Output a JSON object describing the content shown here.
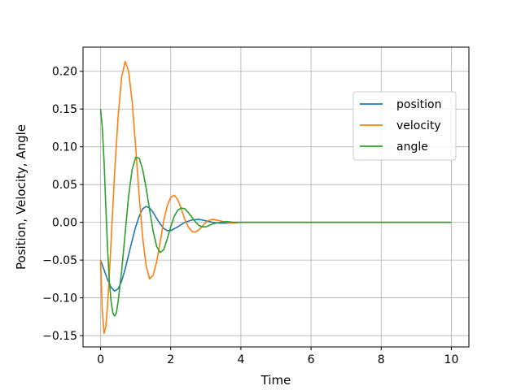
{
  "chart_data": {
    "type": "line",
    "title": "",
    "xlabel": "Time",
    "ylabel": "Position, Velocity, Angle",
    "xlim": [
      -0.5,
      10.5
    ],
    "ylim": [
      -0.165,
      0.232
    ],
    "grid": true,
    "legend_position": "upper right",
    "x_ticks": [
      0,
      2,
      4,
      6,
      8,
      10
    ],
    "x_tick_labels": [
      "0",
      "2",
      "4",
      "6",
      "8",
      "10"
    ],
    "y_ticks": [
      -0.15,
      -0.1,
      -0.05,
      0.0,
      0.05,
      0.1,
      0.15,
      0.2
    ],
    "y_tick_labels": [
      "−0.15",
      "−0.10",
      "−0.05",
      "0.00",
      "0.05",
      "0.10",
      "0.15",
      "0.20"
    ],
    "series": [
      {
        "name": "position",
        "color": "#1f77b4",
        "x": [
          0,
          0.1,
          0.2,
          0.3,
          0.4,
          0.5,
          0.6,
          0.7,
          0.8,
          0.9,
          1.0,
          1.1,
          1.2,
          1.3,
          1.4,
          1.5,
          1.6,
          1.7,
          1.8,
          1.9,
          2.0,
          2.2,
          2.4,
          2.6,
          2.8,
          3.0,
          3.2,
          3.4,
          3.6,
          3.8,
          4.0,
          5.0,
          6.0,
          7.0,
          8.0,
          9.0,
          10.0
        ],
        "y": [
          -0.05,
          -0.063,
          -0.076,
          -0.086,
          -0.091,
          -0.088,
          -0.078,
          -0.062,
          -0.043,
          -0.024,
          -0.006,
          0.008,
          0.018,
          0.021,
          0.019,
          0.013,
          0.005,
          -0.002,
          -0.008,
          -0.011,
          -0.011,
          -0.006,
          0.0,
          0.003,
          0.004,
          0.002,
          0.0,
          -0.001,
          -0.001,
          0.0,
          0.0,
          0.0,
          0.0,
          0.0,
          0.0,
          0.0,
          0.0
        ]
      },
      {
        "name": "velocity",
        "color": "#ff7f0e",
        "x": [
          0,
          0.05,
          0.1,
          0.15,
          0.2,
          0.25,
          0.3,
          0.4,
          0.5,
          0.6,
          0.7,
          0.8,
          0.9,
          1.0,
          1.1,
          1.2,
          1.3,
          1.4,
          1.5,
          1.6,
          1.7,
          1.8,
          1.9,
          2.0,
          2.1,
          2.2,
          2.3,
          2.4,
          2.5,
          2.6,
          2.7,
          2.8,
          2.9,
          3.0,
          3.1,
          3.2,
          3.3,
          3.4,
          3.6,
          3.8,
          4.0,
          5.0,
          6.0,
          7.0,
          8.0,
          9.0,
          10.0
        ],
        "y": [
          -0.05,
          -0.118,
          -0.147,
          -0.138,
          -0.11,
          -0.07,
          -0.025,
          0.065,
          0.14,
          0.192,
          0.213,
          0.2,
          0.16,
          0.1,
          0.035,
          -0.02,
          -0.058,
          -0.075,
          -0.07,
          -0.052,
          -0.026,
          0.002,
          0.022,
          0.033,
          0.036,
          0.03,
          0.018,
          0.004,
          -0.006,
          -0.012,
          -0.013,
          -0.01,
          -0.005,
          0.0,
          0.003,
          0.004,
          0.003,
          0.002,
          0.0,
          -0.001,
          0.0,
          0.0,
          0.0,
          0.0,
          0.0,
          0.0,
          0.0
        ]
      },
      {
        "name": "angle",
        "color": "#2ca02c",
        "x": [
          0,
          0.05,
          0.1,
          0.15,
          0.2,
          0.25,
          0.3,
          0.35,
          0.4,
          0.45,
          0.5,
          0.6,
          0.7,
          0.8,
          0.9,
          1.0,
          1.1,
          1.2,
          1.3,
          1.4,
          1.5,
          1.6,
          1.7,
          1.8,
          1.9,
          2.0,
          2.1,
          2.2,
          2.3,
          2.4,
          2.5,
          2.6,
          2.7,
          2.8,
          2.9,
          3.0,
          3.1,
          3.2,
          3.4,
          3.6,
          3.8,
          4.0,
          5.0,
          6.0,
          7.0,
          8.0,
          9.0,
          10.0
        ],
        "y": [
          0.15,
          0.125,
          0.08,
          0.02,
          -0.035,
          -0.078,
          -0.105,
          -0.12,
          -0.124,
          -0.12,
          -0.105,
          -0.065,
          -0.015,
          0.035,
          0.07,
          0.086,
          0.085,
          0.07,
          0.045,
          0.016,
          -0.012,
          -0.032,
          -0.04,
          -0.036,
          -0.022,
          -0.006,
          0.008,
          0.016,
          0.019,
          0.018,
          0.013,
          0.007,
          0.001,
          -0.004,
          -0.006,
          -0.006,
          -0.004,
          -0.002,
          0.0,
          0.001,
          0.0,
          0.0,
          0.0,
          0.0,
          0.0,
          0.0,
          0.0,
          0.0
        ]
      }
    ]
  }
}
